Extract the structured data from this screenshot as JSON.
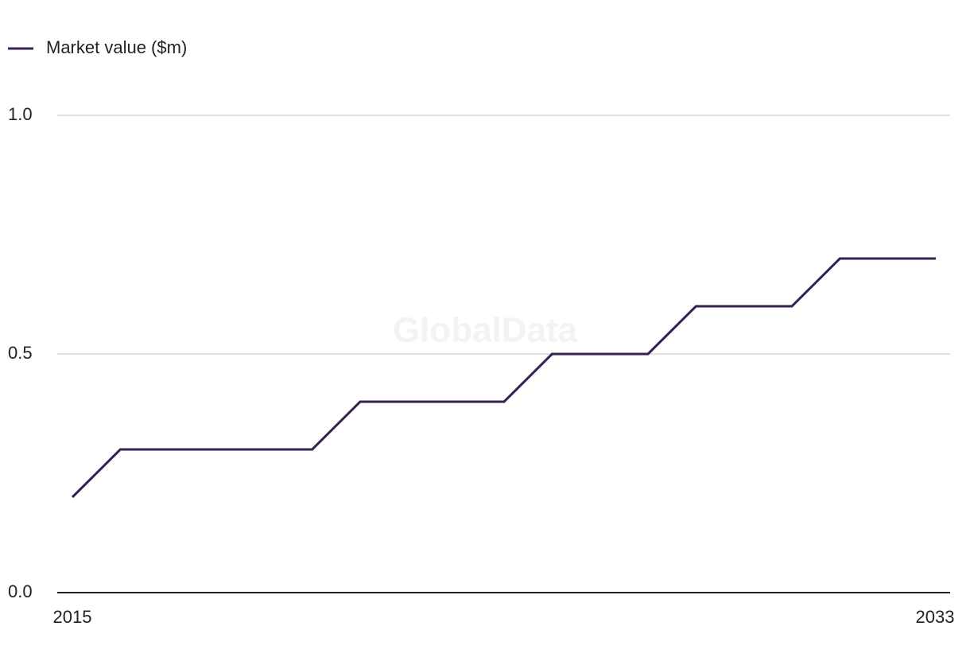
{
  "chart_data": {
    "type": "line",
    "watermark": "GlobalData",
    "x": [
      2015,
      2016,
      2017,
      2018,
      2019,
      2020,
      2021,
      2022,
      2023,
      2024,
      2025,
      2026,
      2027,
      2028,
      2029,
      2030,
      2031,
      2032,
      2033
    ],
    "series": [
      {
        "name": "Market value ($m)",
        "color": "#35224f",
        "values": [
          0.2,
          0.3,
          0.3,
          0.3,
          0.3,
          0.3,
          0.4,
          0.4,
          0.4,
          0.4,
          0.5,
          0.5,
          0.5,
          0.6,
          0.6,
          0.6,
          0.7,
          0.7,
          0.7
        ]
      }
    ],
    "xlim": [
      2015,
      2033
    ],
    "xticks": [
      2015,
      2033
    ],
    "ylim": [
      0,
      1
    ],
    "yticks": [
      {
        "value": 0,
        "label": "0.0"
      },
      {
        "value": 0.5,
        "label": "0.5"
      },
      {
        "value": 1,
        "label": "1.0"
      }
    ],
    "grid": true,
    "legend": "top-left"
  }
}
